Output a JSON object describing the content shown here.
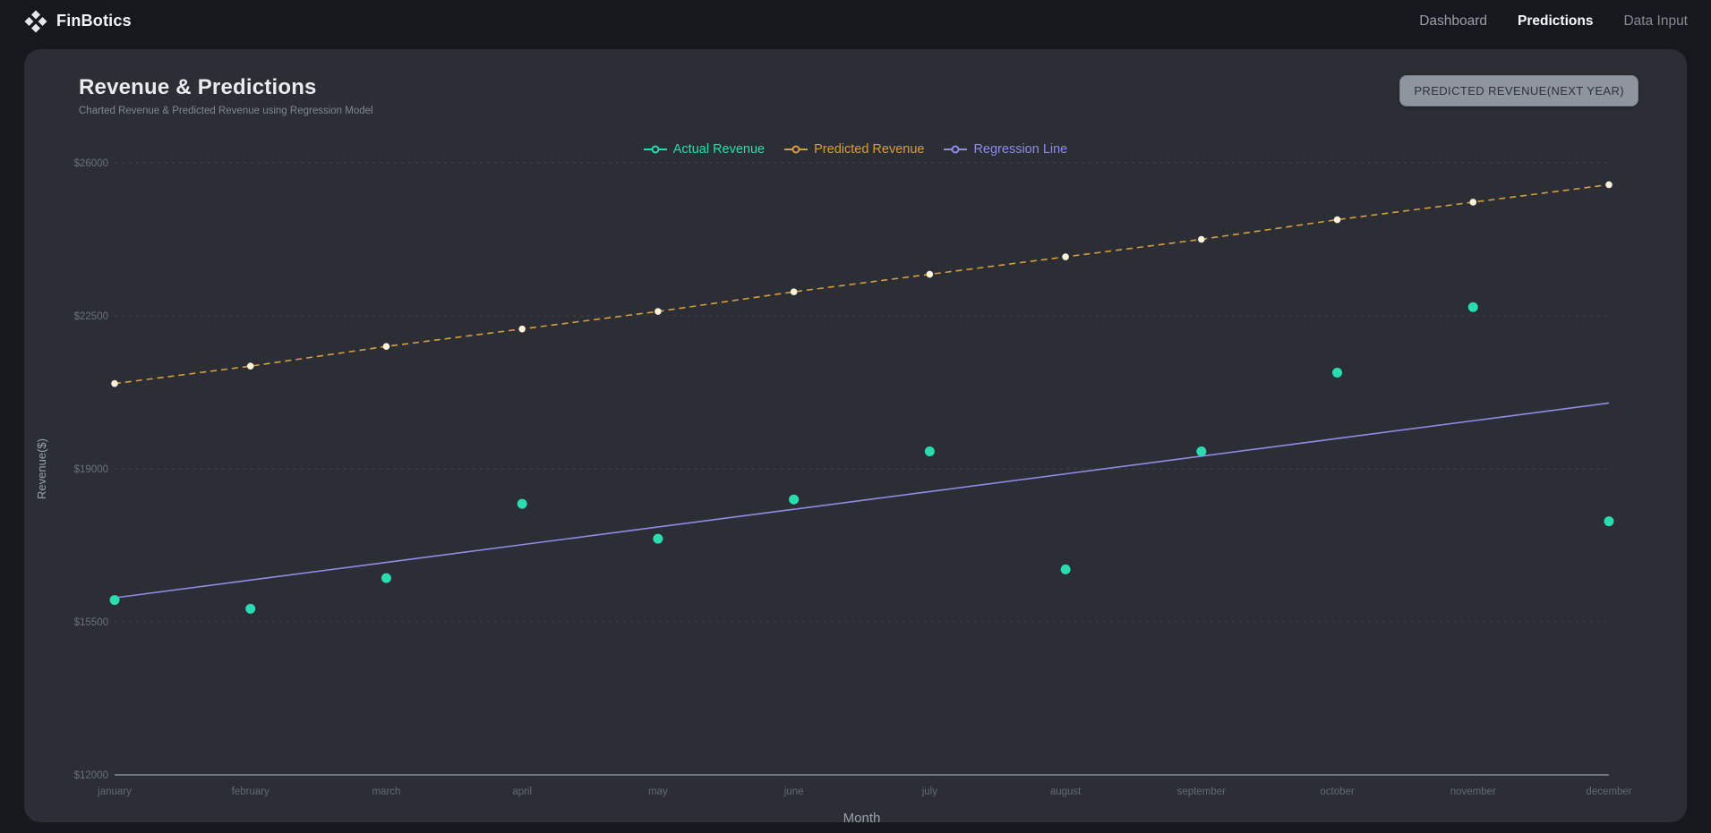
{
  "header": {
    "brand": "FinBotics",
    "nav": [
      {
        "label": "Dashboard",
        "active": false
      },
      {
        "label": "Predictions",
        "active": true
      },
      {
        "label": "Data Input",
        "active": false
      }
    ]
  },
  "panel": {
    "title": "Revenue & Predictions",
    "subtitle": "Charted Revenue & Predicted Revenue using Regression Model",
    "button_label": "PREDICTED REVENUE(NEXT YEAR)"
  },
  "chart_data": {
    "type": "line",
    "title": "Revenue & Predictions",
    "xlabel": "Month",
    "ylabel": "Revenue($)",
    "categories": [
      "january",
      "february",
      "march",
      "april",
      "may",
      "june",
      "july",
      "august",
      "september",
      "october",
      "november",
      "december"
    ],
    "ylim": [
      12000,
      26000
    ],
    "yticks": [
      12000,
      15500,
      19000,
      22500,
      26000
    ],
    "ytick_prefix": "$",
    "grid": "horizontal-dashed",
    "legend_position": "top-center",
    "series": [
      {
        "name": "Actual Revenue",
        "type": "scatter",
        "color": "#2bdcb0",
        "values": [
          16000,
          15800,
          16500,
          18200,
          17400,
          18300,
          19400,
          16700,
          19400,
          21200,
          22700,
          17800
        ]
      },
      {
        "name": "Predicted Revenue",
        "type": "line",
        "line_style": "dashed",
        "color": "#d69e3d",
        "point_color": "#fcf3da",
        "values": [
          20950,
          21350,
          21800,
          22200,
          22600,
          23050,
          23450,
          23850,
          24250,
          24700,
          25100,
          25500
        ]
      },
      {
        "name": "Regression Line",
        "type": "line",
        "line_style": "solid",
        "color": "#918ae8",
        "values": [
          16050,
          16455,
          16860,
          17265,
          17670,
          18075,
          18480,
          18885,
          19290,
          19695,
          20100,
          20505
        ]
      }
    ]
  },
  "colors": {
    "page_bg": "#16181d",
    "card_bg": "#2b2e35",
    "grid_line": "#3d4148",
    "axis_line": "#8c929c",
    "tick_label": "#6c717a",
    "axis_title": "#9aa0ab",
    "accent_teal": "#2bdcb0",
    "accent_amber": "#d69e3d",
    "accent_purple": "#918ae8"
  }
}
